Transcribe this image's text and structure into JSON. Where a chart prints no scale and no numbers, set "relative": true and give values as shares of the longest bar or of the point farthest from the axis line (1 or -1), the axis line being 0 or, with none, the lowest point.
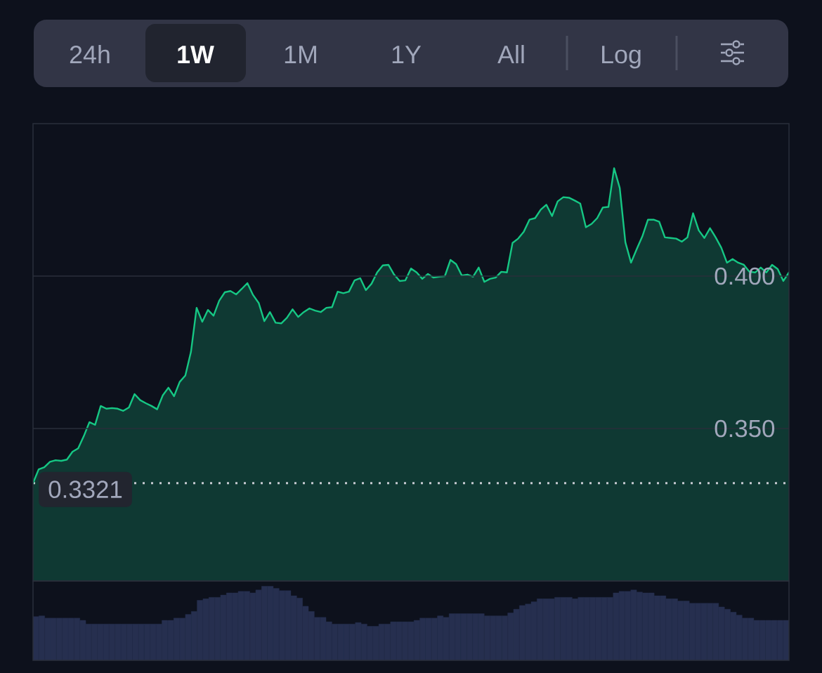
{
  "chart_data": [
    {
      "type": "other",
      "annotations": [
        "24h",
        "1W",
        "1M",
        "1Y",
        "All",
        "Log"
      ]
    },
    {
      "type": "area",
      "categories": [
        null,
        null,
        null,
        null,
        null,
        null,
        null,
        null,
        null,
        null,
        null,
        null,
        null,
        null,
        null,
        null,
        null,
        null,
        null,
        null,
        null,
        null,
        null,
        null,
        null,
        null,
        null,
        null,
        null,
        null,
        null,
        null,
        null,
        null,
        null,
        null,
        null,
        null,
        null,
        null,
        null,
        null,
        null,
        null,
        null,
        null,
        null,
        null,
        null,
        null,
        null,
        null,
        null,
        null,
        null,
        null,
        null,
        null,
        null,
        null,
        null,
        null,
        null,
        null,
        null,
        null,
        null,
        null,
        null,
        null,
        null,
        null,
        null,
        null,
        null,
        null,
        null,
        null,
        null,
        null,
        null,
        null,
        null,
        null,
        null,
        null,
        null,
        null,
        null,
        null,
        null,
        null,
        null,
        null,
        null,
        null,
        null,
        null,
        null,
        null,
        null,
        null,
        null,
        null,
        null,
        null,
        null,
        null,
        null,
        null,
        null,
        null,
        null,
        null,
        null,
        null,
        null,
        null,
        null,
        null,
        null,
        null,
        null,
        null,
        null,
        null,
        null,
        null,
        null,
        null,
        null,
        null,
        null,
        null,
        null
      ],
      "series": [
        {
          "color": "#16c784",
          "values": [
            0.3321,
            0.3366,
            0.3373,
            0.3391,
            0.3396,
            0.3394,
            0.3398,
            0.3424,
            0.3435,
            0.3475,
            0.3521,
            0.3512,
            0.3574,
            0.3565,
            0.3567,
            0.3565,
            0.3558,
            0.3569,
            0.3613,
            0.3593,
            0.3583,
            0.3574,
            0.3563,
            0.3609,
            0.3634,
            0.3606,
            0.3653,
            0.3674,
            0.3752,
            0.3896,
            0.385,
            0.3889,
            0.387,
            0.3919,
            0.3947,
            0.3951,
            0.394,
            0.3958,
            0.3977,
            0.3938,
            0.3912,
            0.3852,
            0.3882,
            0.3847,
            0.3845,
            0.3863,
            0.3891,
            0.3866,
            0.3882,
            0.3894,
            0.3887,
            0.3882,
            0.3896,
            0.3898,
            0.3949,
            0.3944,
            0.3949,
            0.3986,
            0.3993,
            0.3954,
            0.3975,
            0.4012,
            0.4035,
            0.4037,
            0.4005,
            0.3984,
            0.3986,
            0.4025,
            0.4012,
            0.3991,
            0.4007,
            0.3995,
            0.3998,
            0.4,
            0.4053,
            0.4039,
            0.4002,
            0.4005,
            0.3998,
            0.4028,
            0.3981,
            0.3991,
            0.3995,
            0.4014,
            0.4012,
            0.4109,
            0.4123,
            0.4146,
            0.4185,
            0.419,
            0.4218,
            0.4234,
            0.4197,
            0.4245,
            0.4259,
            0.4257,
            0.4248,
            0.4238,
            0.416,
            0.4171,
            0.419,
            0.4225,
            0.4227,
            0.4354,
            0.4289,
            0.4111,
            0.4044,
            0.4088,
            0.413,
            0.4185,
            0.4185,
            0.4178,
            0.4127,
            0.4125,
            0.4123,
            0.4113,
            0.4127,
            0.4206,
            0.415,
            0.4125,
            0.4157,
            0.4127,
            0.4093,
            0.4044,
            0.4056,
            0.4044,
            0.4037,
            0.4014,
            0.4012,
            0.4028,
            0.4012,
            0.4037,
            0.4023,
            0.3984,
            0.4012
          ]
        }
      ],
      "ylim": [
        0.3,
        0.45
      ],
      "yticks": [
        {
          "value": 0.35,
          "label": "0.350"
        },
        {
          "value": 0.4,
          "label": "0.400"
        }
      ],
      "grid": "y",
      "tick_labels": "y",
      "ref_lines": [
        {
          "axis": "y",
          "value": 0.3321,
          "label": "0.3321",
          "color": "#c5c9d0",
          "line_style": "dotted"
        }
      ]
    },
    {
      "type": "bar",
      "relative": true,
      "color": "#262f4f",
      "categories": [
        null,
        null,
        null,
        null,
        null,
        null,
        null,
        null,
        null,
        null,
        null,
        null,
        null,
        null,
        null,
        null,
        null,
        null,
        null,
        null,
        null,
        null,
        null,
        null,
        null,
        null,
        null,
        null,
        null,
        null,
        null,
        null,
        null,
        null,
        null,
        null,
        null,
        null,
        null,
        null,
        null,
        null,
        null,
        null,
        null,
        null,
        null,
        null,
        null,
        null,
        null,
        null,
        null,
        null,
        null,
        null,
        null,
        null,
        null,
        null,
        null,
        null,
        null,
        null,
        null,
        null,
        null,
        null,
        null,
        null,
        null,
        null,
        null,
        null,
        null,
        null,
        null,
        null,
        null,
        null,
        null,
        null,
        null,
        null,
        null,
        null,
        null,
        null,
        null,
        null,
        null,
        null,
        null,
        null,
        null,
        null,
        null,
        null,
        null,
        null,
        null,
        null,
        null,
        null,
        null,
        null,
        null,
        null,
        null,
        null,
        null,
        null,
        null,
        null,
        null,
        null,
        null,
        null,
        null,
        null,
        null,
        null,
        null,
        null,
        null,
        null,
        null,
        null,
        null
      ],
      "values": [
        0.59,
        0.6,
        0.57,
        0.57,
        0.57,
        0.57,
        0.57,
        0.57,
        0.54,
        0.49,
        0.49,
        0.49,
        0.49,
        0.49,
        0.49,
        0.49,
        0.49,
        0.49,
        0.49,
        0.49,
        0.49,
        0.49,
        0.54,
        0.54,
        0.57,
        0.57,
        0.62,
        0.66,
        0.81,
        0.83,
        0.85,
        0.85,
        0.88,
        0.91,
        0.91,
        0.93,
        0.93,
        0.91,
        0.95,
        1,
        1,
        0.97,
        0.94,
        0.94,
        0.87,
        0.84,
        0.73,
        0.66,
        0.58,
        0.58,
        0.52,
        0.49,
        0.49,
        0.49,
        0.49,
        0.51,
        0.49,
        0.46,
        0.46,
        0.49,
        0.49,
        0.52,
        0.52,
        0.52,
        0.52,
        0.54,
        0.57,
        0.57,
        0.57,
        0.6,
        0.58,
        0.63,
        0.63,
        0.63,
        0.63,
        0.63,
        0.63,
        0.6,
        0.6,
        0.6,
        0.6,
        0.64,
        0.69,
        0.74,
        0.76,
        0.79,
        0.83,
        0.83,
        0.83,
        0.85,
        0.85,
        0.85,
        0.83,
        0.85,
        0.85,
        0.85,
        0.85,
        0.85,
        0.85,
        0.91,
        0.93,
        0.93,
        0.95,
        0.92,
        0.91,
        0.91,
        0.87,
        0.87,
        0.83,
        0.83,
        0.8,
        0.8,
        0.77,
        0.77,
        0.77,
        0.77,
        0.77,
        0.72,
        0.69,
        0.65,
        0.61,
        0.57,
        0.57,
        0.54,
        0.54,
        0.54,
        0.54,
        0.54,
        0.54
      ]
    }
  ]
}
